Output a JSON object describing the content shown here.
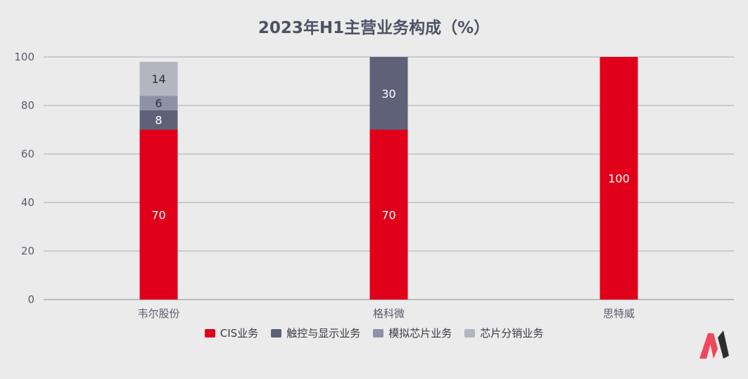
{
  "chart_data": {
    "type": "bar",
    "stacked": true,
    "title": "2023年H1主营业务构成（%）",
    "xlabel": "",
    "ylabel": "",
    "categories": [
      "韦尔股份",
      "格科微",
      "思特威"
    ],
    "ylim": [
      0,
      100
    ],
    "yticks": [
      0,
      20,
      40,
      60,
      80,
      100
    ],
    "grid": true,
    "legend_position": "bottom",
    "series": [
      {
        "name": "CIS业务",
        "values": [
          70,
          70,
          100
        ],
        "color": "#e00019",
        "label_color": "#ffffff"
      },
      {
        "name": "触控与显示业务",
        "values": [
          8,
          30,
          0
        ],
        "color": "#5f6178",
        "label_color": "#ffffff"
      },
      {
        "name": "模拟芯片业务",
        "values": [
          6,
          0,
          0
        ],
        "color": "#8e91a7",
        "label_color": "#2f2f3a"
      },
      {
        "name": "芯片分销业务",
        "values": [
          14,
          0,
          0
        ],
        "color": "#b3b5c1",
        "label_color": "#2f2f3a"
      }
    ],
    "colors": {
      "axis_text": "#5a5c6a",
      "grid": "#a9abb5",
      "axis": "#8a8c98"
    }
  },
  "logo": {
    "icon": "brand-m-logo-icon",
    "colors": [
      "#f0475a",
      "#2d2d2d"
    ]
  }
}
